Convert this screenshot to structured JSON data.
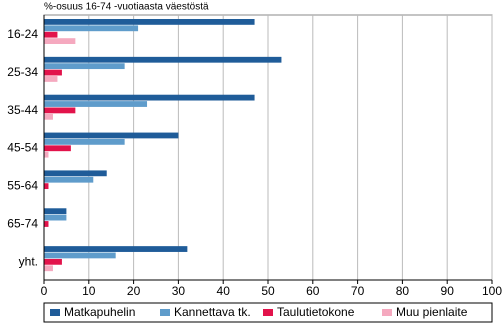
{
  "chart_data": {
    "type": "hbar",
    "title": "%-osuus 16-74 -vuotiaasta väestöstä",
    "categories": [
      "16-24",
      "25-34",
      "35-44",
      "45-54",
      "55-64",
      "65-74",
      "yht."
    ],
    "series": [
      {
        "name": "Matkapuhelin",
        "color": "#1f5c99",
        "values": [
          47,
          53,
          47,
          30,
          14,
          5,
          32
        ]
      },
      {
        "name": "Kannettava tk.",
        "color": "#5f9ccb",
        "values": [
          21,
          18,
          23,
          18,
          11,
          5,
          16
        ]
      },
      {
        "name": "Taulutietokone",
        "color": "#e2134b",
        "values": [
          3,
          4,
          7,
          6,
          1,
          1,
          4
        ]
      },
      {
        "name": "Muu pienlaite",
        "color": "#f5a9bf",
        "values": [
          7,
          3,
          2,
          1,
          0,
          0,
          2
        ]
      }
    ],
    "xlim": [
      0,
      100
    ],
    "xticks": [
      0,
      10,
      20,
      30,
      40,
      50,
      60,
      70,
      80,
      90,
      100
    ],
    "grid": true
  }
}
